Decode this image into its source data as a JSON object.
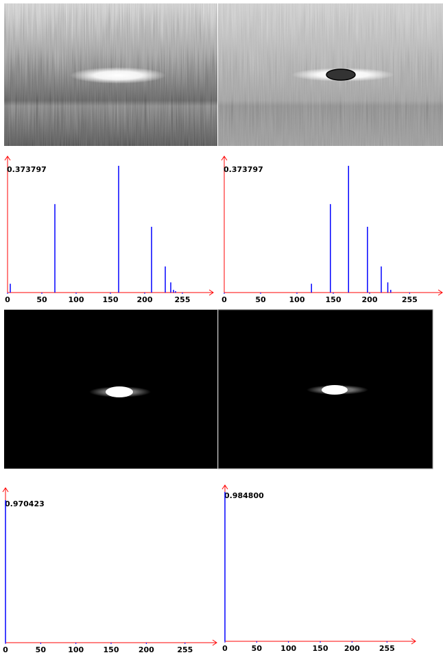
{
  "chart_data": [
    {
      "type": "bar",
      "x": [
        4,
        69,
        162,
        210,
        230,
        238,
        242,
        245
      ],
      "values": [
        0.026,
        0.261,
        0.373797,
        0.194,
        0.077,
        0.03,
        0.008,
        0.004
      ],
      "color": "#0000ff",
      "axis_color": "#ff0000",
      "xlim": [
        0,
        300
      ],
      "ylim": [
        0,
        0.373797
      ],
      "xticks": [
        0,
        50,
        100,
        150,
        200,
        255
      ],
      "yticks": [
        0.373797
      ]
    },
    {
      "type": "bar",
      "x": [
        120,
        146,
        171,
        197,
        216,
        225,
        229
      ],
      "values": [
        0.026,
        0.261,
        0.373797,
        0.194,
        0.077,
        0.03,
        0.008
      ],
      "color": "#0000ff",
      "axis_color": "#ff0000",
      "xlim": [
        0,
        300
      ],
      "ylim": [
        0,
        0.373797
      ],
      "xticks": [
        0,
        50,
        100,
        150,
        200,
        255
      ],
      "yticks": [
        0.373797
      ]
    },
    {
      "type": "bar",
      "x": [
        0
      ],
      "values": [
        0.970423
      ],
      "color": "#0000ff",
      "axis_color": "#ff0000",
      "xlim": [
        0,
        300
      ],
      "ylim": [
        0,
        0.970423
      ],
      "xticks": [
        0,
        50,
        100,
        150,
        200,
        255
      ],
      "yticks": [
        0.970423
      ]
    },
    {
      "type": "bar",
      "x": [
        0
      ],
      "values": [
        0.9848
      ],
      "color": "#0000ff",
      "axis_color": "#ff0000",
      "xlim": [
        0,
        300
      ],
      "ylim": [
        0,
        0.9848
      ],
      "xticks": [
        0,
        50,
        100,
        150,
        200,
        255
      ],
      "yticks": [
        {
          "value": 0.9848,
          "label": "0.984800"
        }
      ]
    }
  ]
}
